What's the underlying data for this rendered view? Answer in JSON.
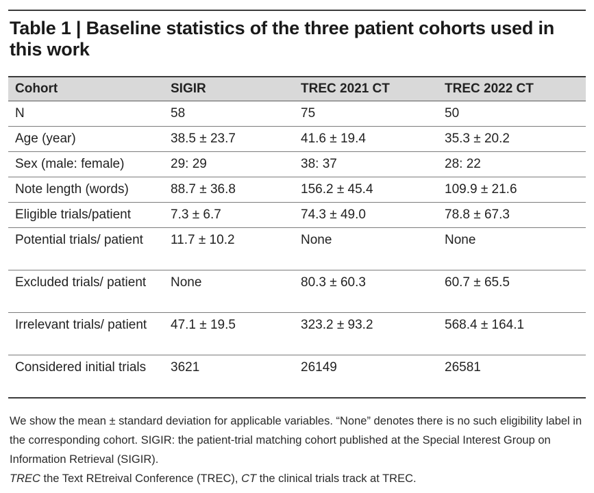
{
  "caption": "Table 1 | Baseline statistics of the three patient cohorts used in this work",
  "table": {
    "headers": [
      "Cohort",
      "SIGIR",
      "TREC 2021 CT",
      "TREC 2022 CT"
    ],
    "rows": [
      [
        "N",
        "58",
        "75",
        "50"
      ],
      [
        "Age (year)",
        "38.5 ± 23.7",
        "41.6 ± 19.4",
        "35.3 ± 20.2"
      ],
      [
        "Sex (male: female)",
        "29: 29",
        "38: 37",
        "28: 22"
      ],
      [
        "Note length (words)",
        "88.7 ± 36.8",
        "156.2 ± 45.4",
        "109.9 ± 21.6"
      ],
      [
        "Eligible trials/patient",
        "7.3 ± 6.7",
        "74.3 ± 49.0",
        "78.8 ± 67.3"
      ],
      [
        "Potential trials/ patient",
        "11.7 ± 10.2",
        "None",
        "None"
      ],
      [
        "Excluded trials/ patient",
        "None",
        "80.3 ± 60.3",
        "60.7 ± 65.5"
      ],
      [
        "Irrelevant trials/ patient",
        "47.1 ± 19.5",
        "323.2 ± 93.2",
        "568.4 ± 164.1"
      ],
      [
        "Considered initial trials",
        "3621",
        "26149",
        "26581"
      ]
    ]
  },
  "notes": {
    "line1": "We show the mean ± standard deviation for applicable variables. “None” denotes there is no such eligibility label in the corresponding cohort. SIGIR: the patient-trial matching cohort published at the Special Interest Group on Information Retrieval (SIGIR).",
    "trec_abbr": "TREC",
    "trec_def": " the Text REtreival Conference (TREC), ",
    "ct_abbr": "CT",
    "ct_def": " the clinical trials track at TREC."
  }
}
